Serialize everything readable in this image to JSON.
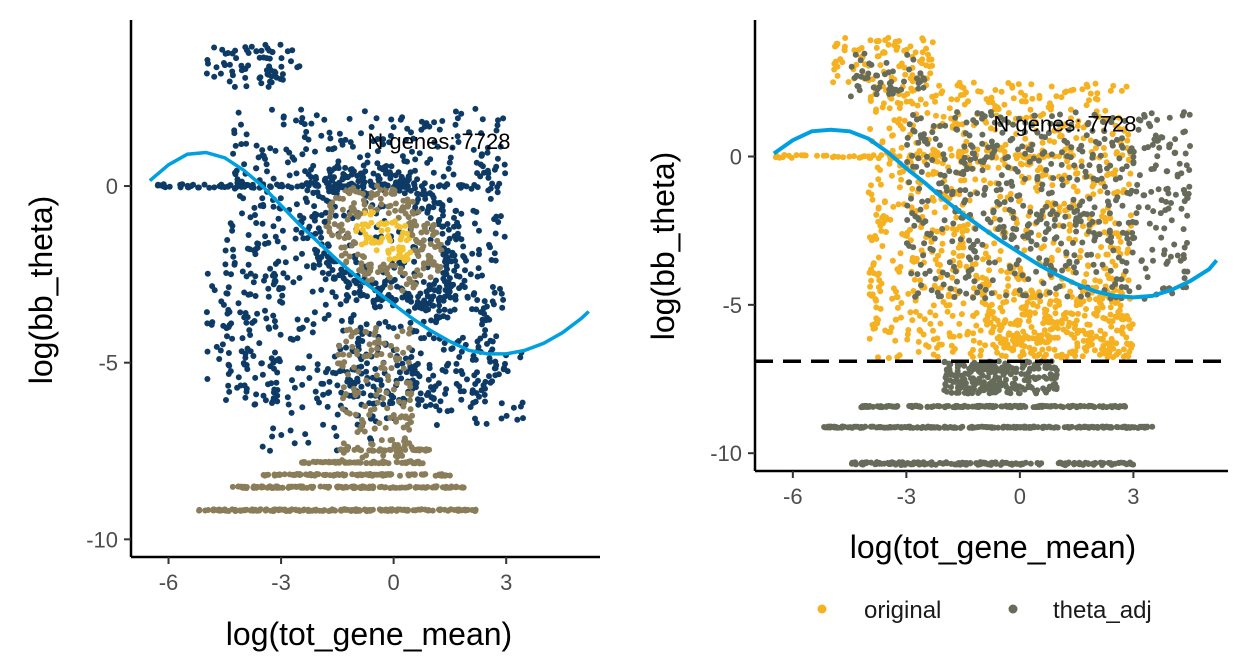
{
  "chart_data": [
    {
      "type": "scatter",
      "xlabel": "log(tot_gene_mean)",
      "ylabel": "log(bb_theta)",
      "xlim": [
        -7,
        5.5
      ],
      "ylim": [
        -10.5,
        4.7
      ],
      "xticks": [
        -6,
        -3,
        0,
        3
      ],
      "xtick_labels": [
        "-6",
        "-3",
        "0",
        "3"
      ],
      "yticks": [
        -10,
        -5,
        0
      ],
      "ytick_labels": [
        "-10",
        "-5",
        "0"
      ],
      "annotation": {
        "text": "N genes: 7728",
        "x": -0.7,
        "y": 1.05
      },
      "density_colors": {
        "low": "#0d3b66",
        "mid": "#8a7d5a",
        "high": "#f2c230"
      },
      "trend": {
        "color": "#00a0e0",
        "x": [
          -6.5,
          -6.0,
          -5.5,
          -5.0,
          -4.5,
          -4.0,
          -3.5,
          -3.0,
          -2.5,
          -2.0,
          -1.5,
          -1.0,
          -0.5,
          0.0,
          0.5,
          1.0,
          1.5,
          2.0,
          2.5,
          3.0,
          3.5,
          4.0,
          4.5,
          5.0,
          5.2
        ],
        "y": [
          0.15,
          0.6,
          0.9,
          0.95,
          0.8,
          0.45,
          0.0,
          -0.55,
          -1.1,
          -1.6,
          -2.1,
          -2.55,
          -2.95,
          -3.35,
          -3.75,
          -4.1,
          -4.4,
          -4.65,
          -4.75,
          -4.75,
          -4.65,
          -4.45,
          -4.15,
          -3.75,
          -3.55
        ]
      },
      "point_groups": [
        {
          "name": "",
          "x_range": [
            -5.0,
            -2.5
          ],
          "y_range": [
            2.8,
            4.0
          ],
          "density": "low",
          "count": 70
        },
        {
          "name": "",
          "x_range": [
            -6.5,
            2.0
          ],
          "y_range": [
            -0.05,
            0.05
          ],
          "density": "low",
          "count": 110
        },
        {
          "name": "",
          "x_range": [
            -2.5,
            2.0
          ],
          "y_range": [
            -3.5,
            0.6
          ],
          "density": "high",
          "count": 520
        },
        {
          "name": "",
          "x_range": [
            -4.5,
            3.0
          ],
          "y_range": [
            -6.2,
            2.2
          ],
          "density": "low",
          "count": 700
        },
        {
          "name": "",
          "x_range": [
            -5.0,
            -3.0
          ],
          "y_range": [
            -5.8,
            -2.0
          ],
          "density": "low",
          "count": 60
        },
        {
          "name": "",
          "x_range": [
            -1.5,
            3.5
          ],
          "y_range": [
            -6.8,
            -4.3
          ],
          "density": "low",
          "count": 120
        },
        {
          "name": "",
          "x_range": [
            -1.5,
            0.5
          ],
          "y_range": [
            -7.8,
            -4.0
          ],
          "density": "mid",
          "count": 150
        },
        {
          "name": "",
          "x_range": [
            -3.5,
            0.0
          ],
          "y_range": [
            -7.5,
            -5.5
          ],
          "density": "low",
          "count": 40
        },
        {
          "name": "",
          "x_range": [
            -1.5,
            1.0
          ],
          "y_range": [
            -7.5,
            -7.45
          ],
          "density": "mid",
          "count": 40
        },
        {
          "name": "",
          "x_range": [
            -2.5,
            0.8
          ],
          "y_range": [
            -7.85,
            -7.8
          ],
          "density": "mid",
          "count": 70
        },
        {
          "name": "",
          "x_range": [
            -3.5,
            1.5
          ],
          "y_range": [
            -8.2,
            -8.15
          ],
          "density": "mid",
          "count": 100
        },
        {
          "name": "",
          "x_range": [
            -4.3,
            2.0
          ],
          "y_range": [
            -8.55,
            -8.5
          ],
          "density": "mid",
          "count": 130
        },
        {
          "name": "",
          "x_range": [
            -5.2,
            2.2
          ],
          "y_range": [
            -9.2,
            -9.15
          ],
          "density": "mid",
          "count": 170
        }
      ]
    },
    {
      "type": "scatter",
      "xlabel": "log(tot_gene_mean)",
      "ylabel": "log(bb_theta)",
      "xlim": [
        -7,
        5.5
      ],
      "ylim": [
        -10.6,
        4.6
      ],
      "xticks": [
        -6,
        -3,
        0,
        3
      ],
      "xtick_labels": [
        "-6",
        "-3",
        "0",
        "3"
      ],
      "yticks": [
        -10,
        -5,
        0
      ],
      "ytick_labels": [
        "-10",
        "-5",
        "0"
      ],
      "annotation": {
        "text": "N genes: 7728",
        "x": -0.7,
        "y": 0.85
      },
      "hline": {
        "y": -6.9,
        "style": "dashed",
        "color": "#000000"
      },
      "legend": {
        "position": "bottom",
        "entries": [
          {
            "label": "original",
            "color": "#f5b120"
          },
          {
            "label": "theta_adj",
            "color": "#666b5a"
          }
        ]
      },
      "trend": {
        "color": "#00a0e0",
        "x": [
          -6.5,
          -6.0,
          -5.5,
          -5.0,
          -4.5,
          -4.0,
          -3.5,
          -3.0,
          -2.5,
          -2.0,
          -1.5,
          -1.0,
          -0.5,
          0.0,
          0.5,
          1.0,
          1.5,
          2.0,
          2.5,
          3.0,
          3.5,
          4.0,
          4.5,
          5.0,
          5.2
        ],
        "y": [
          0.1,
          0.55,
          0.85,
          0.9,
          0.85,
          0.6,
          0.15,
          -0.4,
          -0.9,
          -1.45,
          -1.95,
          -2.4,
          -2.85,
          -3.25,
          -3.65,
          -4.0,
          -4.3,
          -4.55,
          -4.7,
          -4.75,
          -4.7,
          -4.5,
          -4.2,
          -3.8,
          -3.5
        ]
      },
      "series": [
        {
          "name": "original",
          "color": "#f5b120",
          "point_groups": [
            {
              "x_range": [
                -5.0,
                -2.2
              ],
              "y_range": [
                2.5,
                4.0
              ],
              "count": 90
            },
            {
              "x_range": [
                -6.5,
                1.5
              ],
              "y_range": [
                -0.05,
                0.05
              ],
              "count": 80
            },
            {
              "x_range": [
                -4.0,
                3.0
              ],
              "y_range": [
                -6.8,
                2.5
              ],
              "count": 900
            },
            {
              "x_range": [
                -1.0,
                3.0
              ],
              "y_range": [
                -6.8,
                -4.5
              ],
              "count": 200
            }
          ]
        },
        {
          "name": "theta_adj",
          "color": "#666b5a",
          "point_groups": [
            {
              "x_range": [
                -4.5,
                -2.5
              ],
              "y_range": [
                2.0,
                3.5
              ],
              "count": 50
            },
            {
              "x_range": [
                -3.0,
                4.5
              ],
              "y_range": [
                -4.8,
                1.5
              ],
              "count": 600
            },
            {
              "x_range": [
                -2.0,
                1.0
              ],
              "y_range": [
                -8.0,
                -6.9
              ],
              "count": 250
            },
            {
              "x_range": [
                -4.2,
                2.8
              ],
              "y_range": [
                -8.45,
                -8.4
              ],
              "count": 170
            },
            {
              "x_range": [
                -5.2,
                3.5
              ],
              "y_range": [
                -9.15,
                -9.1
              ],
              "count": 220
            },
            {
              "x_range": [
                -4.5,
                3.0
              ],
              "y_range": [
                -10.4,
                -10.3
              ],
              "count": 180
            }
          ]
        }
      ]
    }
  ]
}
